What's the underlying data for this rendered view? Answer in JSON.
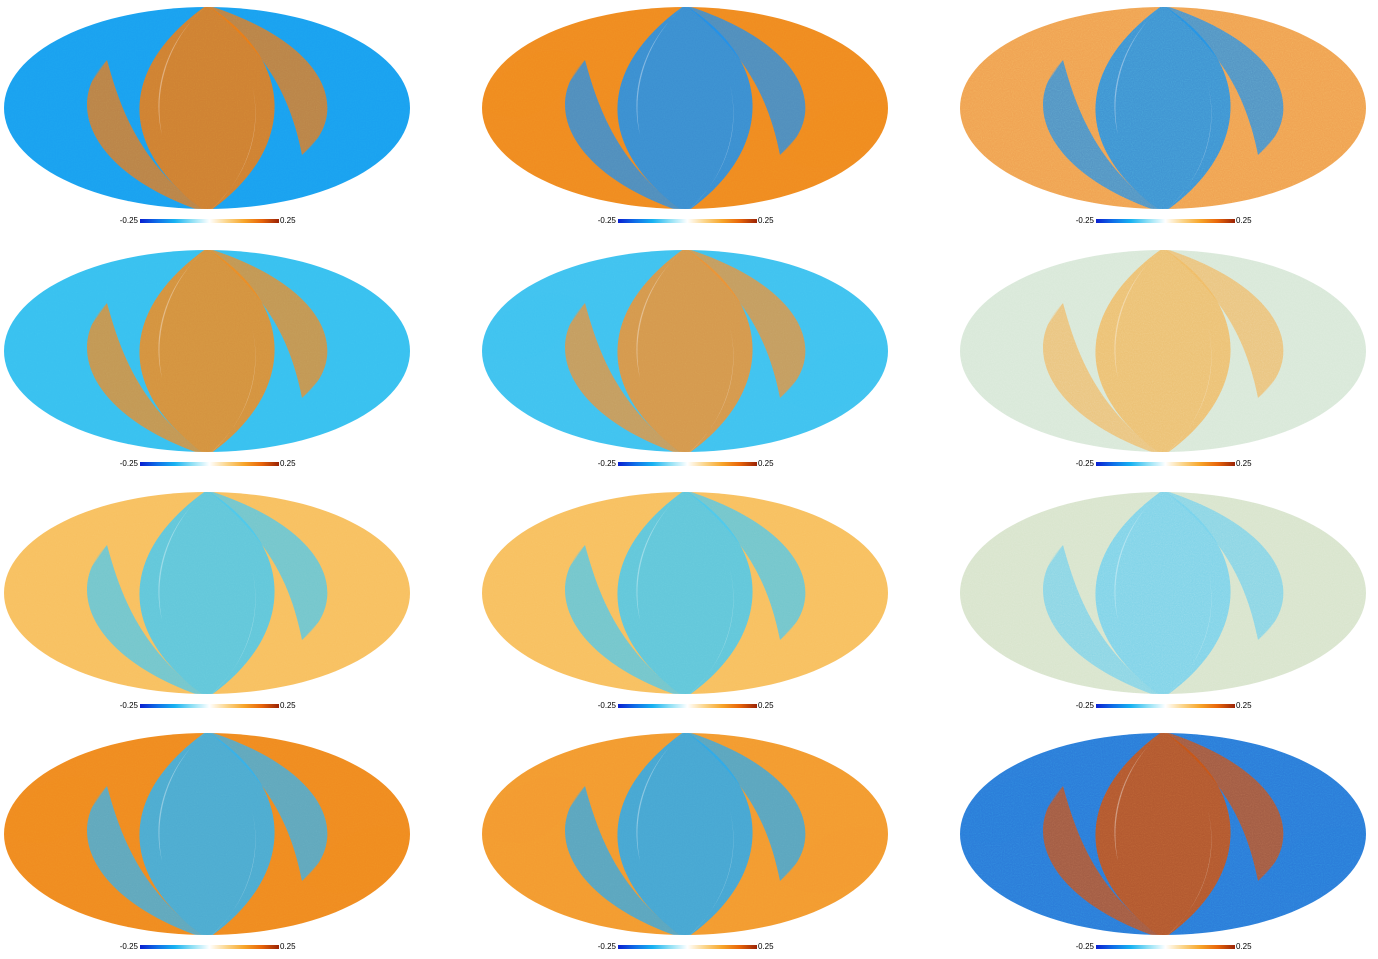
{
  "colorbar": {
    "min_label": "-0.25",
    "max_label": "0.25",
    "colors": [
      "#0a1fd0",
      "#0f6fe8",
      "#18b2f2",
      "#8fe0f5",
      "#ffffff",
      "#fbd58a",
      "#f7a52a",
      "#e8650a",
      "#9a2306"
    ]
  },
  "panels": [
    {
      "pattern": "blue-dominant",
      "bg": "#1aa0f0",
      "band": "#f07a10"
    },
    {
      "pattern": "orange-dominant",
      "bg": "#f08a20",
      "band": "#1b8ef0"
    },
    {
      "pattern": "noisy-strong",
      "bg": "#f0a050",
      "band": "#1e8ee8"
    },
    {
      "pattern": "blue-dominant",
      "bg": "#38c0f0",
      "band": "#f08a20"
    },
    {
      "pattern": "blue-dominant",
      "bg": "#40c2f0",
      "band": "#f09030"
    },
    {
      "pattern": "noisy-weak",
      "bg": "#d8e8d8",
      "band": "#f0b860"
    },
    {
      "pattern": "orange-dominant",
      "bg": "#f8c060",
      "band": "#48c8f0"
    },
    {
      "pattern": "orange-dominant",
      "bg": "#f8c060",
      "band": "#48c8f0"
    },
    {
      "pattern": "noisy-weak",
      "bg": "#d8e4cc",
      "band": "#70d0ec"
    },
    {
      "pattern": "orange-dominant",
      "bg": "#f08a20",
      "band": "#30b0f0"
    },
    {
      "pattern": "orange-dominant",
      "bg": "#f39a30",
      "band": "#28a8ee"
    },
    {
      "pattern": "noisy-strong",
      "bg": "#2a78d8",
      "band": "#c85010"
    }
  ]
}
